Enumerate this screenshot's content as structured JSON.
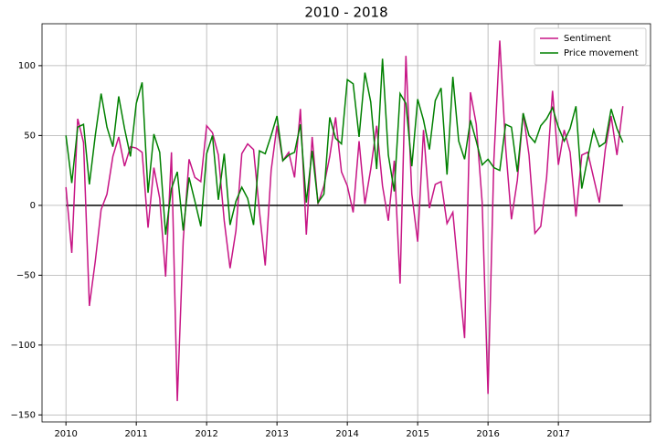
{
  "chart_data": {
    "type": "line",
    "title": "2010 - 2018",
    "x": [
      2010,
      2010.083,
      2010.167,
      2010.25,
      2010.333,
      2010.417,
      2010.5,
      2010.583,
      2010.667,
      2010.75,
      2010.833,
      2010.917,
      2011,
      2011.083,
      2011.167,
      2011.25,
      2011.333,
      2011.417,
      2011.5,
      2011.583,
      2011.667,
      2011.75,
      2011.833,
      2011.917,
      2012,
      2012.083,
      2012.167,
      2012.25,
      2012.333,
      2012.417,
      2012.5,
      2012.583,
      2012.667,
      2012.75,
      2012.833,
      2012.917,
      2013,
      2013.083,
      2013.167,
      2013.25,
      2013.333,
      2013.417,
      2013.5,
      2013.583,
      2013.667,
      2013.75,
      2013.833,
      2013.917,
      2014,
      2014.083,
      2014.167,
      2014.25,
      2014.333,
      2014.417,
      2014.5,
      2014.583,
      2014.667,
      2014.75,
      2014.833,
      2014.917,
      2015,
      2015.083,
      2015.167,
      2015.25,
      2015.333,
      2015.417,
      2015.5,
      2015.583,
      2015.667,
      2015.75,
      2015.833,
      2015.917,
      2016,
      2016.083,
      2016.167,
      2016.25,
      2016.333,
      2016.417,
      2016.5,
      2016.583,
      2016.667,
      2016.75,
      2016.833,
      2016.917,
      2017,
      2017.083,
      2017.167,
      2017.25,
      2017.333,
      2017.417,
      2017.5,
      2017.583,
      2017.667,
      2017.75,
      2017.833,
      2017.917
    ],
    "series": [
      {
        "name": "Sentiment",
        "color": "#c71585",
        "values": [
          13,
          -34,
          62,
          45,
          -72,
          -40,
          -3,
          8,
          35,
          49,
          28,
          42,
          41,
          38,
          -16,
          27,
          5,
          -51,
          38,
          -140,
          -25,
          33,
          20,
          17,
          57,
          52,
          36,
          -11,
          -45,
          -18,
          37,
          44,
          40,
          -4,
          -43,
          25,
          57,
          32,
          38,
          20,
          69,
          -21,
          49,
          1,
          14,
          35,
          63,
          24,
          14,
          -5,
          46,
          1,
          26,
          57,
          14,
          -11,
          32,
          -56,
          107,
          8,
          -26,
          54,
          -2,
          15,
          17,
          -13,
          -5,
          -50,
          -95,
          81,
          58,
          2,
          -135,
          32,
          118,
          42,
          -10,
          18,
          66,
          36,
          -20,
          -15,
          20,
          82,
          29,
          54,
          38,
          -8,
          36,
          38,
          20,
          2,
          40,
          64,
          36,
          71
        ]
      },
      {
        "name": "Price movement",
        "color": "#008000",
        "values": [
          50,
          16,
          56,
          58,
          15,
          50,
          80,
          56,
          42,
          78,
          55,
          35,
          73,
          88,
          9,
          51,
          38,
          -21,
          12,
          24,
          -18,
          20,
          3,
          -15,
          37,
          50,
          4,
          37,
          -14,
          3,
          13,
          5,
          -14,
          39,
          37,
          50,
          64,
          32,
          36,
          38,
          58,
          2,
          39,
          2,
          8,
          63,
          48,
          44,
          90,
          87,
          49,
          95,
          74,
          26,
          105,
          36,
          10,
          80,
          73,
          28,
          76,
          61,
          40,
          75,
          84,
          22,
          92,
          46,
          33,
          61,
          46,
          29,
          33,
          27,
          25,
          58,
          56,
          24,
          66,
          50,
          45,
          57,
          62,
          70,
          56,
          46,
          55,
          71,
          12,
          34,
          54,
          42,
          45,
          69,
          55,
          45
        ]
      }
    ],
    "hline": 0,
    "xlim": [
      2009.66,
      2018.31
    ],
    "xticks": [
      2010,
      2011,
      2012,
      2013,
      2014,
      2015,
      2016,
      2017
    ],
    "ylim": [
      -155,
      130
    ],
    "yticks": [
      {
        "value": -150,
        "label": "−150"
      },
      {
        "value": -100,
        "label": "−100"
      },
      {
        "value": -50,
        "label": "−50"
      },
      0,
      50,
      100
    ],
    "grid": true,
    "legend": "upper right"
  }
}
